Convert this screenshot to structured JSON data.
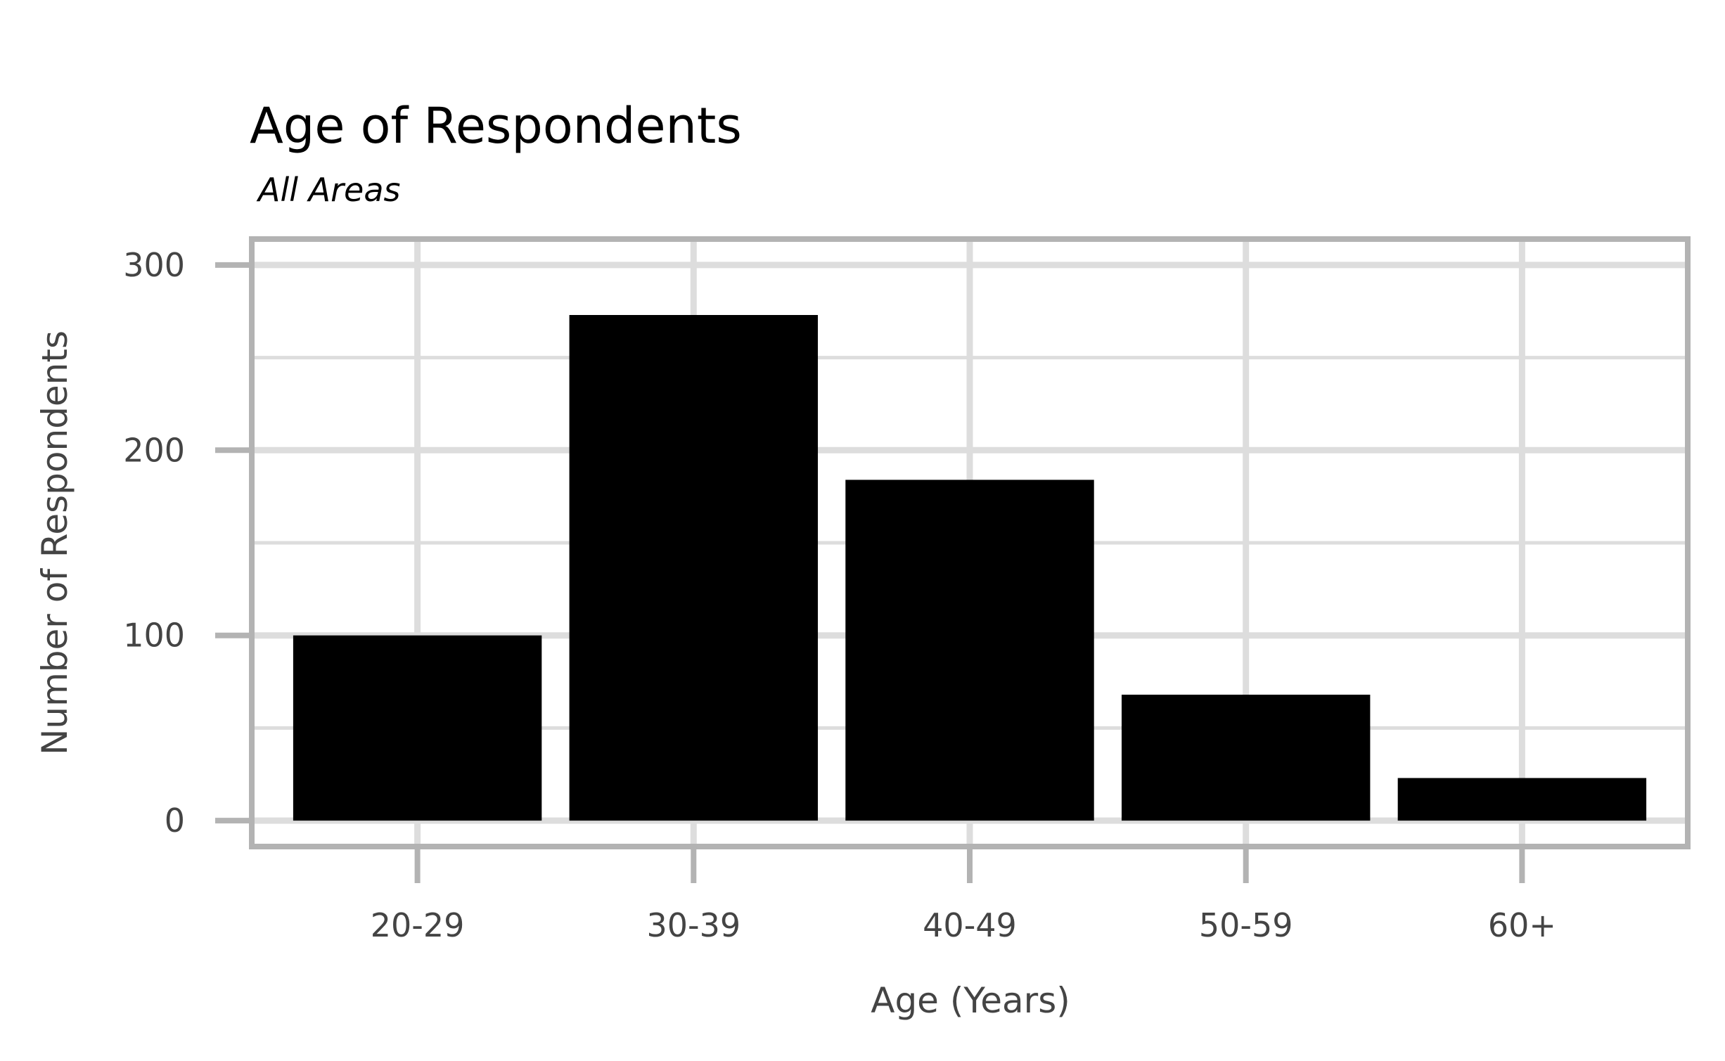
{
  "chart_data": {
    "type": "bar",
    "title": "Age of Respondents",
    "subtitle": "All Areas",
    "xlabel": "Age (Years)",
    "ylabel": "Number of Respondents",
    "categories": [
      "20-29",
      "30-39",
      "40-49",
      "50-59",
      "60+"
    ],
    "values": [
      100,
      273,
      184,
      68,
      23
    ],
    "ylim": [
      -14,
      314
    ],
    "yticks": [
      0,
      100,
      200,
      300
    ],
    "ytick_labels": [
      "0",
      "100",
      "200",
      "300"
    ],
    "minor_yticks": [
      50,
      150,
      250
    ],
    "grid": true,
    "legend": "none",
    "colors": {
      "bar": "#000000",
      "grid": "#dddddd",
      "frame": "#b3b3b3",
      "tick_text": "#444444",
      "title_text": "#000000"
    }
  }
}
